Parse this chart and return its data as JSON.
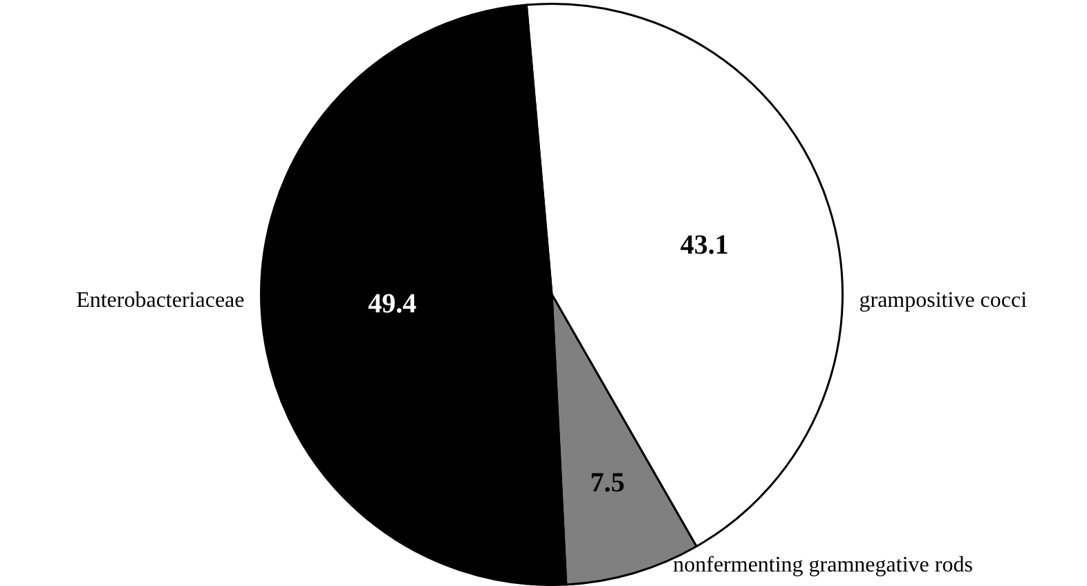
{
  "chart_data": {
    "type": "pie",
    "categories": [
      "grampositive cocci",
      "nonfermenting gramnegative rods",
      "Enterobacteriaceae"
    ],
    "values": [
      43.1,
      7.5,
      49.4
    ],
    "colors": [
      "#ffffff",
      "#808080",
      "#000000"
    ],
    "data_labels": true,
    "legend": false
  }
}
